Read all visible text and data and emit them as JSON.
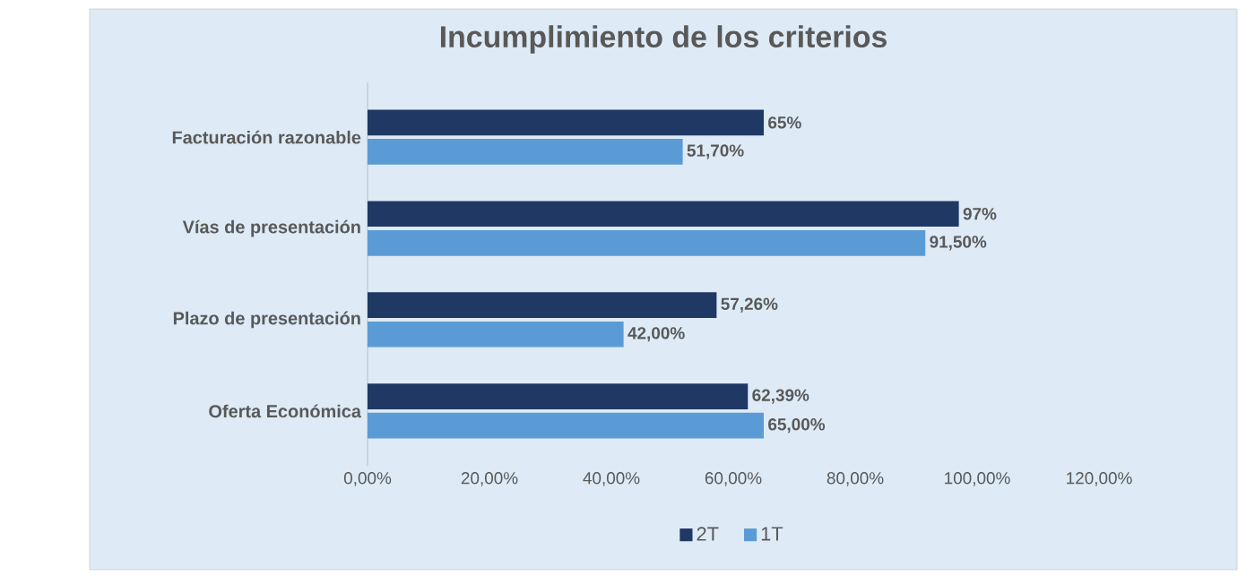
{
  "chart_data": {
    "type": "bar",
    "orientation": "horizontal",
    "title": "Incumplimiento de los criterios",
    "categories": [
      "Facturación razonable",
      "Vías de presentación",
      "Plazo de presentación",
      "Oferta Económica"
    ],
    "series": [
      {
        "name": "2T",
        "color": "#1f3864",
        "values": [
          65,
          97,
          57.26,
          62.39
        ],
        "value_labels": [
          "65%",
          "97%",
          "57,26%",
          "62,39%"
        ]
      },
      {
        "name": "1T",
        "color": "#5b9bd5",
        "values": [
          51.7,
          91.5,
          42,
          65
        ],
        "value_labels": [
          "51,70%",
          "91,50%",
          "42,00%",
          "65,00%"
        ]
      }
    ],
    "xlim": [
      0,
      120
    ],
    "xticks": [
      {
        "value": 0,
        "label": "0,00%"
      },
      {
        "value": 20,
        "label": "20,00%"
      },
      {
        "value": 40,
        "label": "40,00%"
      },
      {
        "value": 60,
        "label": "60,00%"
      },
      {
        "value": 80,
        "label": "80,00%"
      },
      {
        "value": 100,
        "label": "100,00%"
      },
      {
        "value": 120,
        "label": "120,00%"
      }
    ],
    "legend": "bottom"
  }
}
